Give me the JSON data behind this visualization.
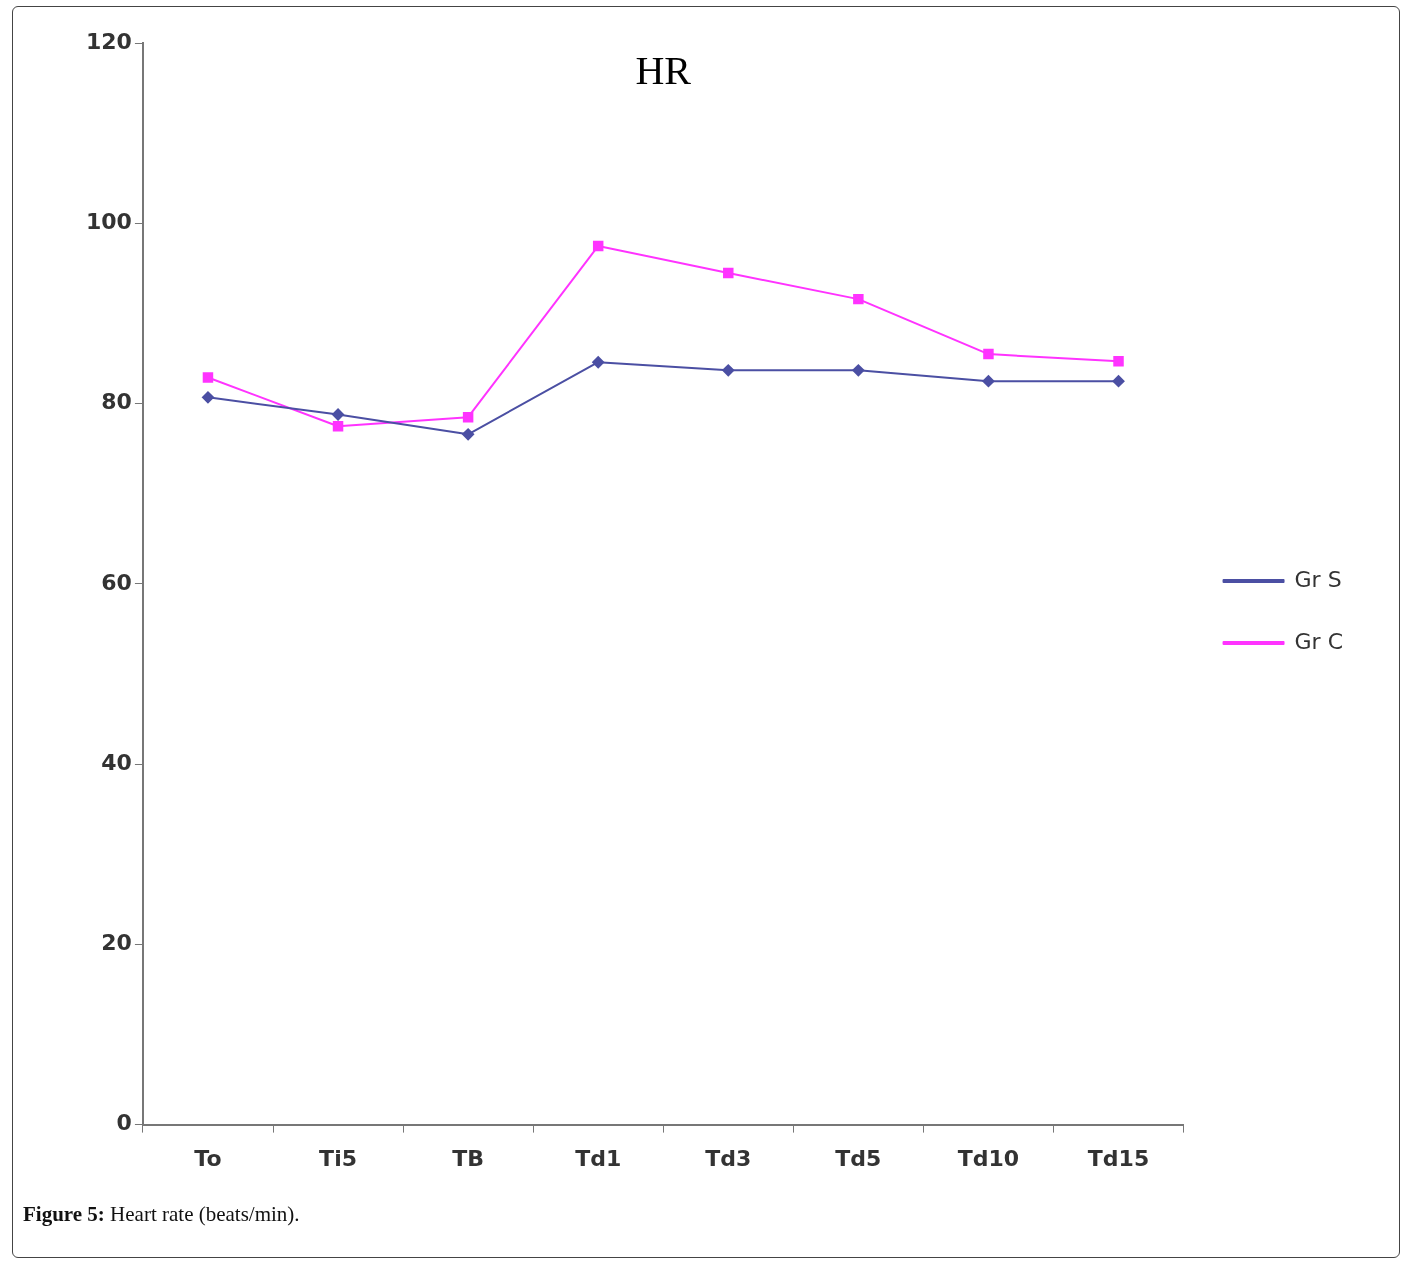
{
  "chart_data": {
    "type": "line",
    "title": "HR",
    "categories": [
      "To",
      "Ti5",
      "TB",
      "Td1",
      "Td3",
      "Td5",
      "Td10",
      "Td15"
    ],
    "series": [
      {
        "name": "Gr S",
        "color": "#4b4fa3",
        "marker": "diamond",
        "values": [
          80.7,
          78.8,
          76.6,
          84.6,
          83.7,
          83.7,
          82.5,
          82.5
        ]
      },
      {
        "name": "Gr C",
        "color": "#ff33ff",
        "marker": "square",
        "values": [
          82.9,
          77.5,
          78.5,
          97.5,
          94.5,
          91.6,
          85.5,
          84.7
        ]
      }
    ],
    "ylim": [
      0,
      120
    ],
    "yticks": [
      0,
      20,
      40,
      60,
      80,
      100,
      120
    ],
    "grid": false,
    "legend": "right",
    "annotations": [
      "Figure 5: Heart rate (beats/min)."
    ]
  }
}
